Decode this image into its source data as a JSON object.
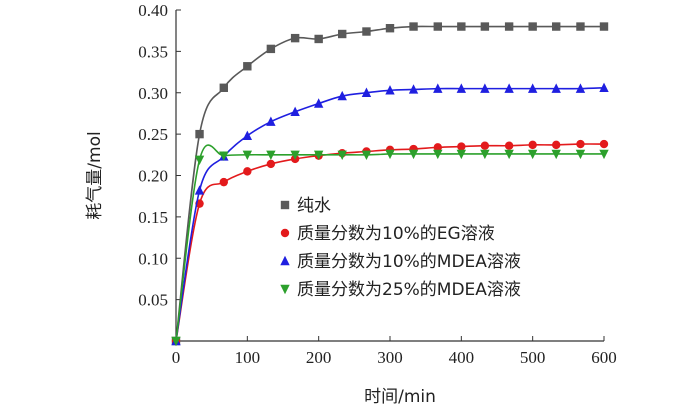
{
  "chart_data": {
    "type": "line",
    "xlabel": "时间/min",
    "ylabel": "耗气量/mol",
    "xlim": [
      0,
      600
    ],
    "ylim": [
      0,
      0.4
    ],
    "x_ticks": [
      "0",
      "100",
      "200",
      "300",
      "400",
      "500",
      "600"
    ],
    "y_ticks": [
      "0.05",
      "0.10",
      "0.15",
      "0.20",
      "0.25",
      "0.30",
      "0.35",
      "0.40"
    ],
    "grid": false,
    "legend_position": "center-right",
    "series": [
      {
        "name": "纯水",
        "color": "#595959",
        "marker": "square",
        "x": [
          0,
          33,
          67,
          100,
          133,
          167,
          200,
          233,
          267,
          300,
          333,
          367,
          400,
          433,
          467,
          500,
          533,
          567,
          600
        ],
        "y": [
          0.0,
          0.25,
          0.306,
          0.332,
          0.353,
          0.366,
          0.365,
          0.371,
          0.374,
          0.378,
          0.38,
          0.38,
          0.38,
          0.38,
          0.38,
          0.38,
          0.38,
          0.38,
          0.38
        ]
      },
      {
        "name": "质量分数为10%的EG溶液",
        "color": "#e31a1c",
        "marker": "circle",
        "x": [
          0,
          33,
          67,
          100,
          133,
          167,
          200,
          233,
          267,
          300,
          333,
          367,
          400,
          433,
          467,
          500,
          533,
          567,
          600
        ],
        "y": [
          0.0,
          0.166,
          0.192,
          0.205,
          0.214,
          0.22,
          0.224,
          0.227,
          0.229,
          0.231,
          0.232,
          0.234,
          0.235,
          0.236,
          0.236,
          0.237,
          0.237,
          0.238,
          0.238
        ]
      },
      {
        "name": "质量分数为10%的MDEA溶液",
        "color": "#1f1fe0",
        "marker": "triangle-up",
        "x": [
          0,
          33,
          67,
          100,
          133,
          167,
          200,
          233,
          267,
          300,
          333,
          367,
          400,
          433,
          467,
          500,
          533,
          567,
          600
        ],
        "y": [
          0.0,
          0.182,
          0.223,
          0.248,
          0.265,
          0.277,
          0.287,
          0.296,
          0.3,
          0.303,
          0.304,
          0.305,
          0.305,
          0.305,
          0.305,
          0.305,
          0.305,
          0.305,
          0.306
        ]
      },
      {
        "name": "质量分数为25%的MDEA溶液",
        "color": "#2ca02c",
        "marker": "triangle-down",
        "x": [
          0,
          33,
          67,
          100,
          133,
          167,
          200,
          233,
          267,
          300,
          333,
          367,
          400,
          433,
          467,
          500,
          533,
          567,
          600
        ],
        "y": [
          0.0,
          0.219,
          0.224,
          0.225,
          0.225,
          0.225,
          0.225,
          0.225,
          0.225,
          0.226,
          0.226,
          0.226,
          0.226,
          0.226,
          0.226,
          0.226,
          0.226,
          0.226,
          0.226
        ]
      }
    ]
  }
}
